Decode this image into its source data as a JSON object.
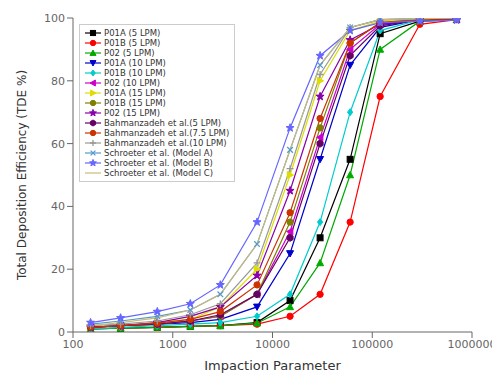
{
  "chart_data": {
    "type": "line",
    "x_label": "Impaction Parameter",
    "y_label": "Total Deposition Efficiency (TDE %)",
    "log": "x",
    "grid": false,
    "legend": "upper left",
    "xlim": [
      100,
      1000000
    ],
    "ylim": [
      0,
      100
    ],
    "xticks": [
      100,
      1000,
      10000,
      100000,
      1000000
    ],
    "yticks": [
      0,
      20,
      40,
      60,
      80,
      100
    ],
    "x": [
      150,
      300,
      700,
      1500,
      3000,
      7000,
      15000,
      30000,
      60000,
      120000,
      300000,
      700000
    ],
    "series": [
      {
        "name": "P01A (5 LPM)",
        "color": "#000000",
        "marker": "square",
        "values": [
          1.0,
          1.2,
          1.5,
          1.8,
          2.0,
          3.0,
          10.0,
          30.0,
          55.0,
          95.0,
          99.0,
          99.5
        ]
      },
      {
        "name": "P01B (5 LPM)",
        "color": "#ff0000",
        "marker": "circle",
        "values": [
          1.0,
          1.2,
          1.5,
          1.8,
          2.0,
          2.5,
          5.0,
          12.0,
          35.0,
          75.0,
          98.0,
          99.5
        ]
      },
      {
        "name": "P02 (5 LPM)",
        "color": "#00aa00",
        "marker": "triangle-up",
        "values": [
          1.0,
          1.2,
          1.5,
          1.8,
          2.0,
          2.8,
          8.0,
          22.0,
          50.0,
          90.0,
          99.0,
          99.5
        ]
      },
      {
        "name": "P01A (10 LPM)",
        "color": "#0000cc",
        "marker": "triangle-down",
        "values": [
          1.5,
          2.0,
          2.5,
          3.0,
          4.0,
          8.0,
          25.0,
          55.0,
          85.0,
          97.0,
          99.5,
          99.8
        ]
      },
      {
        "name": "P01B (10 LPM)",
        "color": "#00cccc",
        "marker": "diamond",
        "values": [
          1.0,
          1.5,
          2.0,
          2.5,
          3.0,
          5.0,
          12.0,
          35.0,
          70.0,
          96.0,
          99.5,
          99.8
        ]
      },
      {
        "name": "P02 (10 LPM)",
        "color": "#cc00cc",
        "marker": "triangle-left",
        "values": [
          1.5,
          2.0,
          2.5,
          3.5,
          5.0,
          12.0,
          32.0,
          62.0,
          90.0,
          98.0,
          99.5,
          99.8
        ]
      },
      {
        "name": "P01A (15 LPM)",
        "color": "#dddd00",
        "marker": "triangle-right",
        "values": [
          1.5,
          2.0,
          3.0,
          4.0,
          8.0,
          20.0,
          50.0,
          80.0,
          96.0,
          99.0,
          99.8,
          100.0
        ]
      },
      {
        "name": "P01B (15 LPM)",
        "color": "#808000",
        "marker": "circle",
        "values": [
          1.5,
          2.0,
          2.5,
          3.5,
          5.0,
          12.0,
          35.0,
          65.0,
          92.0,
          98.5,
          99.5,
          99.8
        ]
      },
      {
        "name": "P02 (15 LPM)",
        "color": "#8800aa",
        "marker": "star",
        "values": [
          1.5,
          2.0,
          3.0,
          5.0,
          8.0,
          18.0,
          45.0,
          75.0,
          93.0,
          98.0,
          99.3,
          99.5
        ]
      },
      {
        "name": "Bahmanzadeh et al.(5 LPM)",
        "color": "#660066",
        "marker": "hexagon",
        "values": [
          1.5,
          2.0,
          2.5,
          3.5,
          5.5,
          12.0,
          30.0,
          60.0,
          88.0,
          97.5,
          99.5,
          99.8
        ]
      },
      {
        "name": "Bahmanzadeh et al.(7.5 LPM)",
        "color": "#cc3300",
        "marker": "circle",
        "values": [
          1.5,
          2.0,
          2.8,
          4.0,
          6.5,
          15.0,
          38.0,
          68.0,
          92.0,
          98.5,
          99.5,
          99.8
        ]
      },
      {
        "name": "Bahmanzadeh et al.(10 LPM)",
        "color": "#999999",
        "marker": "plus",
        "values": [
          2.0,
          2.5,
          3.5,
          5.5,
          9.0,
          22.0,
          52.0,
          82.0,
          97.0,
          99.5,
          99.8,
          100.0
        ]
      },
      {
        "name": "Schroeter et al. (Model A)",
        "color": "#5599cc",
        "marker": "x",
        "values": [
          2.5,
          3.5,
          5.0,
          7.0,
          12.0,
          28.0,
          58.0,
          85.0,
          97.0,
          99.5,
          99.8,
          100.0
        ]
      },
      {
        "name": "Schroeter et al. (Model B)",
        "color": "#6666ff",
        "marker": "star",
        "values": [
          3.0,
          4.5,
          6.5,
          9.0,
          15.0,
          35.0,
          65.0,
          88.0,
          96.0,
          98.5,
          99.0,
          99.3
        ]
      },
      {
        "name": "Schroeter et al. (Model C)",
        "color": "#ccbb77",
        "marker": "none",
        "values": [
          2.0,
          3.0,
          4.5,
          7.0,
          12.0,
          28.0,
          58.0,
          85.0,
          97.0,
          99.5,
          99.8,
          100.0
        ]
      }
    ]
  }
}
